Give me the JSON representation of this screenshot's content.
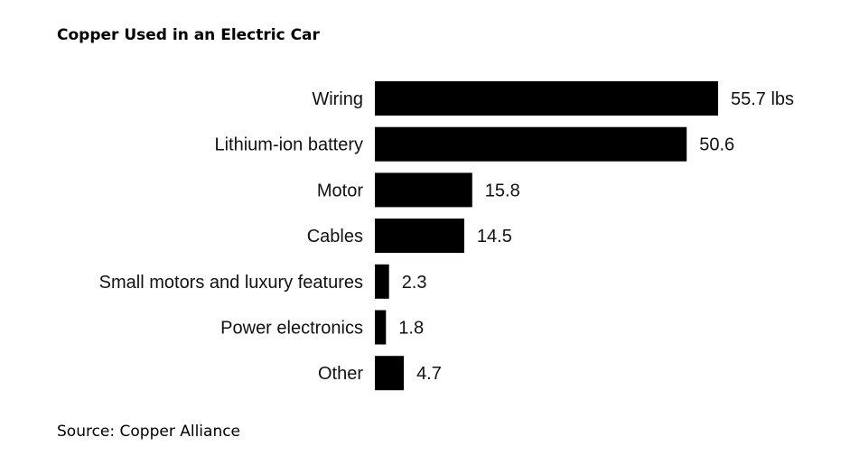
{
  "chart_data": {
    "type": "bar",
    "orientation": "horizontal",
    "title": "Copper Used in an Electric Car",
    "categories": [
      "Wiring",
      "Lithium-ion battery",
      "Motor",
      "Cables",
      "Small motors and luxury features",
      "Power electronics",
      "Other"
    ],
    "values": [
      55.7,
      50.6,
      15.8,
      14.5,
      2.3,
      1.8,
      4.7
    ],
    "value_labels": [
      "55.7 lbs",
      "50.6",
      "15.8",
      "14.5",
      "2.3",
      "1.8",
      "4.7"
    ],
    "unit": "lbs",
    "xlim": [
      0,
      55.7
    ],
    "bar_color": "#000000",
    "grid": false,
    "legend": "none"
  },
  "source": "Source: Copper Alliance"
}
